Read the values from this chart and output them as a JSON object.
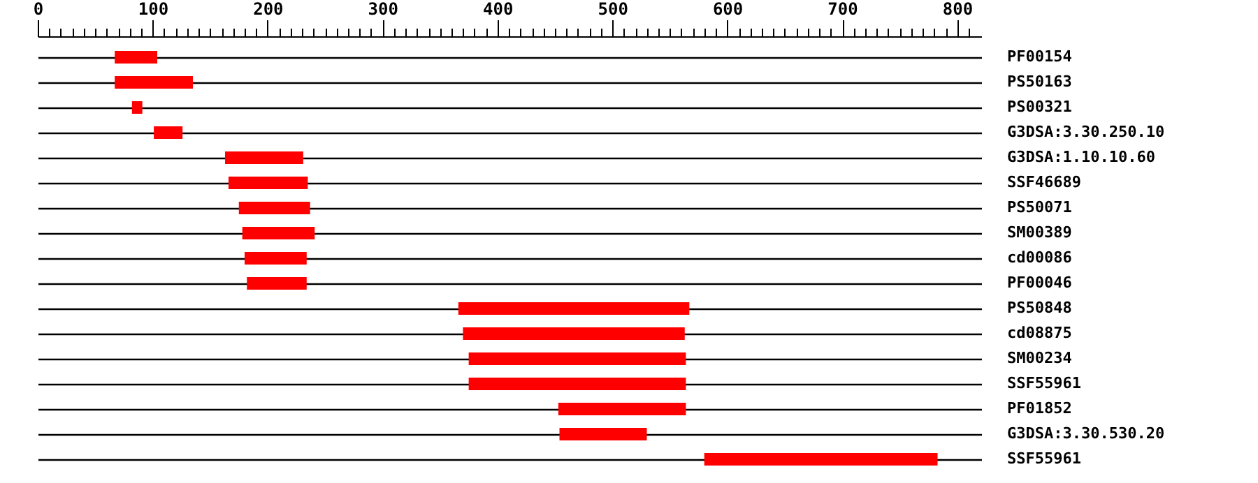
{
  "chart_data": {
    "type": "bar",
    "orientation": "horizontal",
    "categories": [
      "PF00154",
      "PS50163",
      "PS00321",
      "G3DSA:3.30.250.10",
      "G3DSA:1.10.10.60",
      "SSF46689",
      "PS50071",
      "SM00389",
      "cd00086",
      "PF00046",
      "PS50848",
      "cd08875",
      "SM00234",
      "SSF55961",
      "PF01852",
      "G3DSA:3.30.530.20",
      "SSF55961"
    ],
    "base": [
      67,
      67,
      82,
      101,
      163,
      166,
      175,
      178,
      180,
      182,
      366,
      370,
      375,
      375,
      453,
      454,
      580
    ],
    "values": [
      37,
      68,
      9,
      25,
      68,
      69,
      62,
      63,
      54,
      52,
      201,
      193,
      189,
      189,
      111,
      76,
      203
    ],
    "color": "#ff0000",
    "xlim": [
      0,
      821
    ],
    "xticks": [
      0,
      {
        "value": 10,
        "label": null
      },
      {
        "value": 20,
        "label": null
      },
      {
        "value": 30,
        "label": null
      },
      {
        "value": 40,
        "label": null
      },
      {
        "value": 50,
        "label": null
      },
      {
        "value": 60,
        "label": null
      },
      {
        "value": 70,
        "label": null
      },
      {
        "value": 80,
        "label": null
      },
      {
        "value": 90,
        "label": null
      },
      100,
      {
        "value": 110,
        "label": null
      },
      {
        "value": 120,
        "label": null
      },
      {
        "value": 130,
        "label": null
      },
      {
        "value": 140,
        "label": null
      },
      {
        "value": 150,
        "label": null
      },
      {
        "value": 160,
        "label": null
      },
      {
        "value": 170,
        "label": null
      },
      {
        "value": 180,
        "label": null
      },
      {
        "value": 190,
        "label": null
      },
      200,
      {
        "value": 210,
        "label": null
      },
      {
        "value": 220,
        "label": null
      },
      {
        "value": 230,
        "label": null
      },
      {
        "value": 240,
        "label": null
      },
      {
        "value": 250,
        "label": null
      },
      {
        "value": 260,
        "label": null
      },
      {
        "value": 270,
        "label": null
      },
      {
        "value": 280,
        "label": null
      },
      {
        "value": 290,
        "label": null
      },
      300,
      {
        "value": 310,
        "label": null
      },
      {
        "value": 320,
        "label": null
      },
      {
        "value": 330,
        "label": null
      },
      {
        "value": 340,
        "label": null
      },
      {
        "value": 350,
        "label": null
      },
      {
        "value": 360,
        "label": null
      },
      {
        "value": 370,
        "label": null
      },
      {
        "value": 380,
        "label": null
      },
      {
        "value": 390,
        "label": null
      },
      400,
      {
        "value": 410,
        "label": null
      },
      {
        "value": 420,
        "label": null
      },
      {
        "value": 430,
        "label": null
      },
      {
        "value": 440,
        "label": null
      },
      {
        "value": 450,
        "label": null
      },
      {
        "value": 460,
        "label": null
      },
      {
        "value": 470,
        "label": null
      },
      {
        "value": 480,
        "label": null
      },
      {
        "value": 490,
        "label": null
      },
      500,
      {
        "value": 510,
        "label": null
      },
      {
        "value": 520,
        "label": null
      },
      {
        "value": 530,
        "label": null
      },
      {
        "value": 540,
        "label": null
      },
      {
        "value": 550,
        "label": null
      },
      {
        "value": 560,
        "label": null
      },
      {
        "value": 570,
        "label": null
      },
      {
        "value": 580,
        "label": null
      },
      {
        "value": 590,
        "label": null
      },
      600,
      {
        "value": 610,
        "label": null
      },
      {
        "value": 620,
        "label": null
      },
      {
        "value": 630,
        "label": null
      },
      {
        "value": 640,
        "label": null
      },
      {
        "value": 650,
        "label": null
      },
      {
        "value": 660,
        "label": null
      },
      {
        "value": 670,
        "label": null
      },
      {
        "value": 680,
        "label": null
      },
      {
        "value": 690,
        "label": null
      },
      700,
      {
        "value": 710,
        "label": null
      },
      {
        "value": 720,
        "label": null
      },
      {
        "value": 730,
        "label": null
      },
      {
        "value": 740,
        "label": null
      },
      {
        "value": 750,
        "label": null
      },
      {
        "value": 760,
        "label": null
      },
      {
        "value": 770,
        "label": null
      },
      {
        "value": 780,
        "label": null
      },
      {
        "value": 790,
        "label": null
      },
      800,
      {
        "value": 810,
        "label": null
      }
    ],
    "grid": "y"
  }
}
